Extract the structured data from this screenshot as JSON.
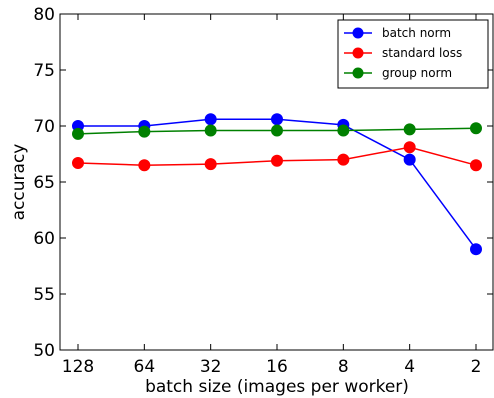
{
  "chart_data": {
    "type": "line",
    "categories": [
      "128",
      "64",
      "32",
      "16",
      "8",
      "4",
      "2"
    ],
    "xlabel": "batch size (images per worker)",
    "ylabel": "accuracy",
    "ylim": [
      50,
      80
    ],
    "yticks": [
      "50",
      "55",
      "60",
      "65",
      "70",
      "75",
      "80"
    ],
    "grid": false,
    "legend_position": "top-right",
    "series": [
      {
        "name": "batch norm",
        "color": "#0000ff",
        "values": [
          70.0,
          70.0,
          70.6,
          70.6,
          70.1,
          67.0,
          59.0
        ]
      },
      {
        "name": "standard loss",
        "color": "#ff0000",
        "values": [
          66.7,
          66.5,
          66.6,
          66.9,
          67.0,
          68.1,
          66.5
        ]
      },
      {
        "name": "group norm",
        "color": "#008000",
        "values": [
          69.3,
          69.5,
          69.6,
          69.6,
          69.6,
          69.7,
          69.8
        ]
      }
    ]
  }
}
